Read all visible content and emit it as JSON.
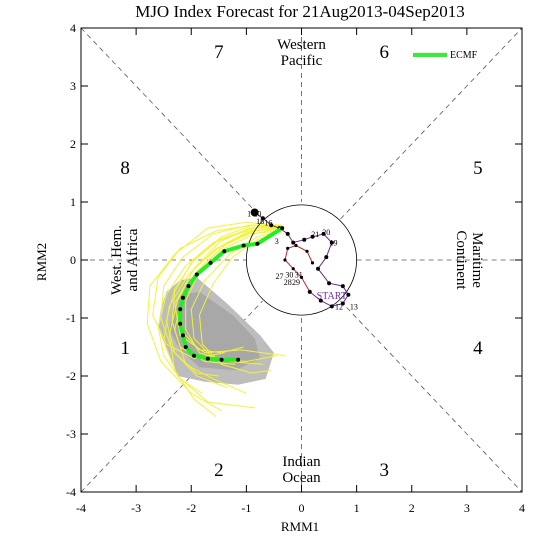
{
  "chart_data": {
    "type": "line",
    "title": "MJO Index Forecast for 21Aug2013-04Sep2013",
    "xlabel": "RMM1",
    "ylabel": "RMM2",
    "xlim": [
      -4,
      4
    ],
    "ylim": [
      -4,
      4
    ],
    "xticks": [
      "-4",
      "-3",
      "-2",
      "-1",
      "0",
      "1",
      "2",
      "3",
      "4"
    ],
    "yticks": [
      "-4",
      "-3",
      "-2",
      "-1",
      "0",
      "1",
      "2",
      "3",
      "4"
    ],
    "grid": false,
    "legend_position": "top-right",
    "phase_numbers": [
      {
        "label": "1",
        "x": -3.2,
        "y": -1.5
      },
      {
        "label": "2",
        "x": -1.5,
        "y": -3.6
      },
      {
        "label": "3",
        "x": 1.5,
        "y": -3.6
      },
      {
        "label": "4",
        "x": 3.2,
        "y": -1.5
      },
      {
        "label": "5",
        "x": 3.2,
        "y": 1.6
      },
      {
        "label": "6",
        "x": 1.5,
        "y": 3.6
      },
      {
        "label": "7",
        "x": -1.5,
        "y": 3.6
      },
      {
        "label": "8",
        "x": -3.2,
        "y": 1.6
      }
    ],
    "regions": {
      "top": [
        "Western",
        "Pacific"
      ],
      "bottom": [
        "Indian",
        "Ocean"
      ],
      "left": [
        "West. Hem.",
        "and Africa"
      ],
      "right": [
        "Maritime",
        "Continent"
      ]
    },
    "unit_circle_radius": 1,
    "shaded_region_outer": [
      [
        -2.55,
        -0.85
      ],
      [
        -2.45,
        -0.55
      ],
      [
        -2.2,
        -0.35
      ],
      [
        -1.9,
        -0.3
      ],
      [
        -1.35,
        -0.75
      ],
      [
        -0.75,
        -1.3
      ],
      [
        -0.5,
        -1.6
      ],
      [
        -0.65,
        -2.05
      ],
      [
        -1.15,
        -2.15
      ],
      [
        -1.75,
        -2.1
      ],
      [
        -2.25,
        -2.0
      ],
      [
        -2.45,
        -1.55
      ],
      [
        -2.6,
        -1.15
      ]
    ],
    "shaded_region_inner": [
      [
        -2.35,
        -0.95
      ],
      [
        -2.2,
        -0.6
      ],
      [
        -1.85,
        -0.55
      ],
      [
        -1.25,
        -0.95
      ],
      [
        -0.85,
        -1.35
      ],
      [
        -0.75,
        -1.7
      ],
      [
        -1.2,
        -1.9
      ],
      [
        -1.85,
        -1.85
      ],
      [
        -2.2,
        -1.55
      ],
      [
        -2.4,
        -1.2
      ]
    ],
    "ensemble_members": [
      [
        [
          -0.35,
          0.55
        ],
        [
          -0.9,
          0.55
        ],
        [
          -1.5,
          0.35
        ],
        [
          -2.0,
          -0.05
        ],
        [
          -2.3,
          -0.55
        ],
        [
          -2.35,
          -1.05
        ],
        [
          -2.2,
          -1.5
        ],
        [
          -1.75,
          -1.75
        ],
        [
          -1.2,
          -1.8
        ]
      ],
      [
        [
          -0.35,
          0.6
        ],
        [
          -0.95,
          0.6
        ],
        [
          -1.6,
          0.45
        ],
        [
          -2.15,
          0.05
        ],
        [
          -2.5,
          -0.45
        ],
        [
          -2.55,
          -1.0
        ],
        [
          -2.35,
          -1.55
        ],
        [
          -1.9,
          -2.0
        ],
        [
          -1.35,
          -2.2
        ]
      ],
      [
        [
          -0.4,
          0.55
        ],
        [
          -0.85,
          0.45
        ],
        [
          -1.4,
          0.2
        ],
        [
          -1.85,
          -0.2
        ],
        [
          -2.1,
          -0.7
        ],
        [
          -2.1,
          -1.2
        ],
        [
          -1.85,
          -1.6
        ],
        [
          -1.3,
          -1.75
        ],
        [
          -0.7,
          -1.8
        ]
      ],
      [
        [
          -0.35,
          0.5
        ],
        [
          -0.8,
          0.4
        ],
        [
          -1.3,
          0.1
        ],
        [
          -1.75,
          -0.35
        ],
        [
          -2.0,
          -0.85
        ],
        [
          -1.95,
          -1.35
        ],
        [
          -1.6,
          -1.7
        ],
        [
          -1.0,
          -1.75
        ],
        [
          -0.45,
          -1.65
        ]
      ],
      [
        [
          -0.4,
          0.6
        ],
        [
          -1.0,
          0.65
        ],
        [
          -1.7,
          0.55
        ],
        [
          -2.3,
          0.1
        ],
        [
          -2.75,
          -0.45
        ],
        [
          -2.8,
          -1.1
        ],
        [
          -2.55,
          -1.75
        ],
        [
          -2.0,
          -2.3
        ],
        [
          -1.45,
          -2.6
        ]
      ],
      [
        [
          -0.35,
          0.55
        ],
        [
          -0.9,
          0.5
        ],
        [
          -1.45,
          0.25
        ],
        [
          -1.95,
          -0.15
        ],
        [
          -2.3,
          -0.75
        ],
        [
          -2.2,
          -1.3
        ],
        [
          -1.75,
          -1.6
        ],
        [
          -1.1,
          -1.55
        ],
        [
          -0.3,
          -1.65
        ]
      ],
      [
        [
          -0.4,
          0.5
        ],
        [
          -0.95,
          0.45
        ],
        [
          -1.55,
          0.2
        ],
        [
          -2.05,
          -0.25
        ],
        [
          -2.4,
          -0.8
        ],
        [
          -2.5,
          -1.4
        ],
        [
          -2.25,
          -2.0
        ],
        [
          -1.7,
          -2.45
        ],
        [
          -0.85,
          -2.55
        ]
      ],
      [
        [
          -0.35,
          0.6
        ],
        [
          -0.85,
          0.55
        ],
        [
          -1.35,
          0.3
        ],
        [
          -1.8,
          -0.1
        ],
        [
          -2.15,
          -0.6
        ],
        [
          -2.3,
          -1.2
        ],
        [
          -2.1,
          -1.8
        ],
        [
          -1.6,
          -2.05
        ],
        [
          -1.0,
          -2.3
        ]
      ],
      [
        [
          -0.4,
          0.55
        ],
        [
          -0.9,
          0.6
        ],
        [
          -1.55,
          0.5
        ],
        [
          -2.2,
          0.2
        ],
        [
          -2.6,
          -0.3
        ],
        [
          -2.7,
          -0.95
        ],
        [
          -2.45,
          -1.45
        ],
        [
          -1.95,
          -1.7
        ],
        [
          -1.4,
          -1.6
        ]
      ],
      [
        [
          -0.35,
          0.5
        ],
        [
          -0.8,
          0.35
        ],
        [
          -1.25,
          0.05
        ],
        [
          -1.6,
          -0.4
        ],
        [
          -1.85,
          -0.95
        ],
        [
          -1.8,
          -1.45
        ],
        [
          -1.45,
          -1.8
        ],
        [
          -0.9,
          -1.95
        ],
        [
          -0.55,
          -1.9
        ]
      ],
      [
        [
          -0.4,
          0.6
        ],
        [
          -0.95,
          0.55
        ],
        [
          -1.5,
          0.3
        ],
        [
          -1.95,
          -0.15
        ],
        [
          -2.25,
          -0.7
        ],
        [
          -2.4,
          -1.3
        ],
        [
          -2.3,
          -1.9
        ],
        [
          -1.95,
          -2.4
        ],
        [
          -1.55,
          -2.7
        ]
      ],
      [
        [
          -0.35,
          0.55
        ],
        [
          -0.85,
          0.5
        ],
        [
          -1.4,
          0.25
        ],
        [
          -1.9,
          -0.2
        ],
        [
          -2.2,
          -0.75
        ],
        [
          -2.15,
          -1.25
        ],
        [
          -1.85,
          -1.55
        ],
        [
          -1.45,
          -1.6
        ],
        [
          -1.05,
          -1.5
        ]
      ],
      [
        [
          -0.4,
          0.55
        ],
        [
          -1.0,
          0.5
        ],
        [
          -1.6,
          0.3
        ],
        [
          -2.1,
          -0.1
        ],
        [
          -2.45,
          -0.6
        ],
        [
          -2.6,
          -1.15
        ],
        [
          -2.5,
          -1.65
        ],
        [
          -2.2,
          -2.05
        ],
        [
          -1.8,
          -2.3
        ]
      ],
      [
        [
          -0.35,
          0.6
        ],
        [
          -0.9,
          0.6
        ],
        [
          -1.45,
          0.4
        ],
        [
          -1.95,
          0.0
        ],
        [
          -2.3,
          -0.5
        ],
        [
          -2.45,
          -1.05
        ],
        [
          -2.3,
          -1.6
        ],
        [
          -1.9,
          -1.95
        ],
        [
          -1.5,
          -2.0
        ]
      ]
    ],
    "ecmwf_mean": {
      "name": "ECMF",
      "points": [
        [
          -0.35,
          0.55
        ],
        [
          -0.8,
          0.28
        ],
        [
          -1.05,
          0.25
        ],
        [
          -1.4,
          0.15
        ],
        [
          -1.65,
          -0.05
        ],
        [
          -1.9,
          -0.25
        ],
        [
          -2.05,
          -0.45
        ],
        [
          -2.15,
          -0.65
        ],
        [
          -2.2,
          -0.85
        ],
        [
          -2.2,
          -1.1
        ],
        [
          -2.15,
          -1.3
        ],
        [
          -2.1,
          -1.5
        ],
        [
          -1.95,
          -1.65
        ],
        [
          -1.7,
          -1.7
        ],
        [
          -1.45,
          -1.72
        ],
        [
          -1.15,
          -1.72
        ]
      ]
    },
    "observed_path": {
      "points": [
        [
          -0.85,
          0.82
        ],
        [
          -0.7,
          0.72
        ],
        [
          -0.55,
          0.6
        ],
        [
          -0.4,
          0.55
        ],
        [
          -0.25,
          0.45
        ],
        [
          -0.15,
          0.3
        ],
        [
          0.05,
          0.35
        ],
        [
          0.2,
          0.4
        ],
        [
          0.4,
          0.45
        ],
        [
          0.55,
          0.3
        ],
        [
          0.45,
          0.05
        ],
        [
          0.3,
          -0.15
        ],
        [
          0.5,
          -0.4
        ],
        [
          0.75,
          -0.45
        ],
        [
          0.85,
          -0.6
        ],
        [
          0.75,
          -0.75
        ],
        [
          0.55,
          -0.8
        ],
        [
          0.35,
          -0.7
        ],
        [
          0.15,
          -0.55
        ]
      ]
    },
    "observed_recent_path": {
      "points": [
        [
          0.15,
          -0.55
        ],
        [
          0.0,
          -0.3
        ],
        [
          -0.15,
          -0.15
        ],
        [
          -0.3,
          0.0
        ],
        [
          -0.25,
          0.2
        ],
        [
          -0.1,
          0.25
        ],
        [
          0.1,
          0.15
        ],
        [
          0.2,
          -0.05
        ]
      ]
    },
    "day_labels": [
      {
        "text": "1",
        "x": -0.95,
        "y": 0.8
      },
      {
        "text": "20",
        "x": -0.8,
        "y": 0.8
      },
      {
        "text": "18",
        "x": -0.75,
        "y": 0.67
      },
      {
        "text": "16",
        "x": -0.6,
        "y": 0.65
      },
      {
        "text": "21",
        "x": 0.25,
        "y": 0.45
      },
      {
        "text": "20",
        "x": 0.45,
        "y": 0.48
      },
      {
        "text": "19",
        "x": 0.58,
        "y": 0.3
      },
      {
        "text": "3",
        "x": -0.45,
        "y": 0.33
      },
      {
        "text": "30",
        "x": -0.22,
        "y": -0.25
      },
      {
        "text": "31",
        "x": -0.05,
        "y": -0.25
      },
      {
        "text": "27",
        "x": -0.4,
        "y": -0.28
      },
      {
        "text": "28",
        "x": -0.25,
        "y": -0.38
      },
      {
        "text": "29",
        "x": -0.1,
        "y": -0.38
      },
      {
        "text": "12",
        "x": 0.68,
        "y": -0.8
      },
      {
        "text": "13",
        "x": 0.95,
        "y": -0.8
      }
    ],
    "start_label": "START"
  }
}
